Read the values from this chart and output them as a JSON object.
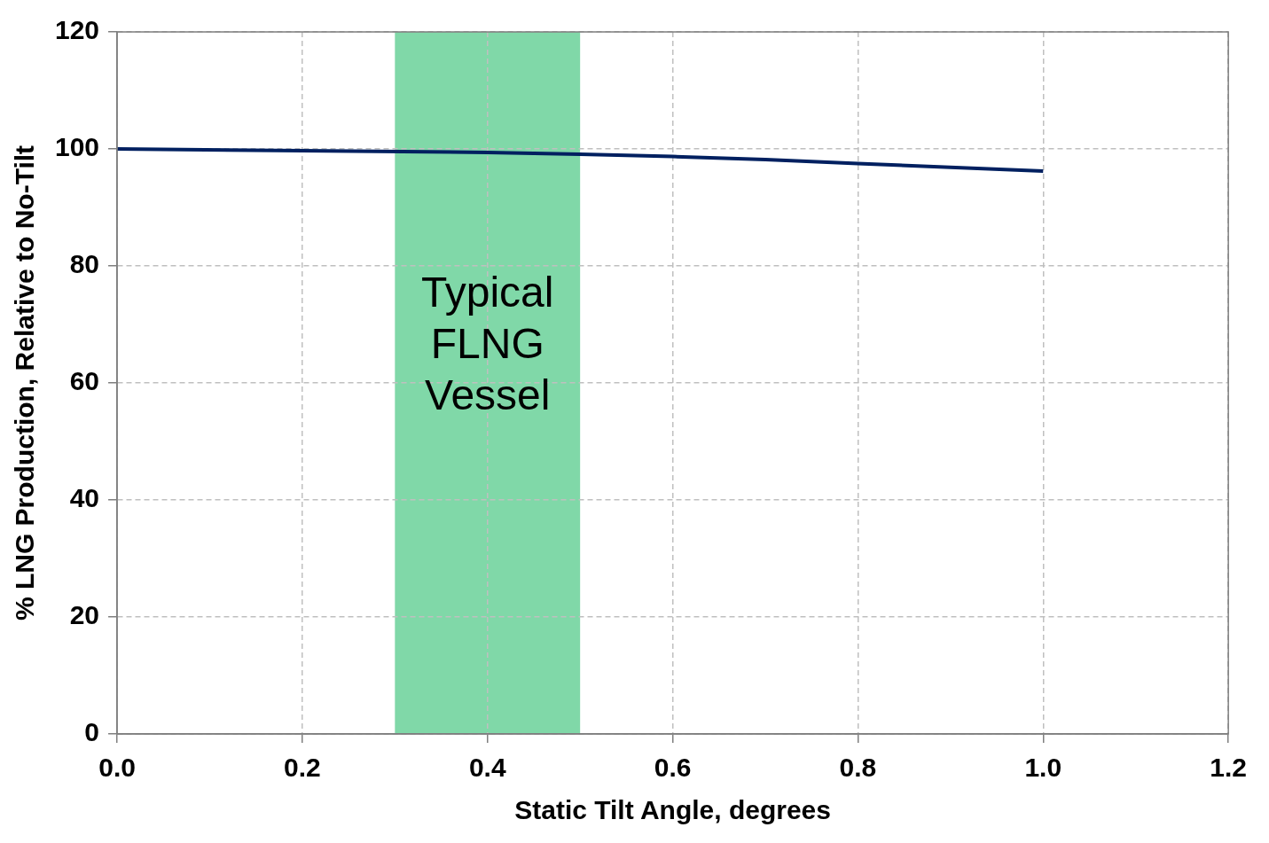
{
  "chart_data": {
    "type": "line",
    "xlabel": "Static Tilt Angle, degrees",
    "ylabel": "% LNG Production, Relative to No-Tilt",
    "x": [
      0,
      0.2,
      0.4,
      0.5,
      0.6,
      0.7,
      0.8,
      1.0
    ],
    "series": [
      {
        "color": "#002060",
        "values": [
          100,
          99.7,
          99.4,
          99.1,
          98.7,
          98.2,
          97.5,
          96.2
        ]
      }
    ],
    "xlim": [
      0,
      1.2
    ],
    "xticks": [
      {
        "value": 0,
        "label": "0.0"
      },
      {
        "value": 0.2,
        "label": "0.2"
      },
      {
        "value": 0.4,
        "label": "0.4"
      },
      {
        "value": 0.6,
        "label": "0.6"
      },
      {
        "value": 0.8,
        "label": "0.8"
      },
      {
        "value": 1.0,
        "label": "1.0"
      },
      {
        "value": 1.2,
        "label": "1.2"
      }
    ],
    "ylim": [
      0,
      120
    ],
    "yticks": [
      0,
      20,
      40,
      60,
      80,
      100,
      120
    ],
    "grid": true,
    "marker": "none",
    "line_style": "solid",
    "bands": [
      {
        "axis": "x",
        "from": 0.3,
        "to": 0.5,
        "label": "Typical FLNG Vessel",
        "color": "#80d8a8"
      }
    ]
  }
}
